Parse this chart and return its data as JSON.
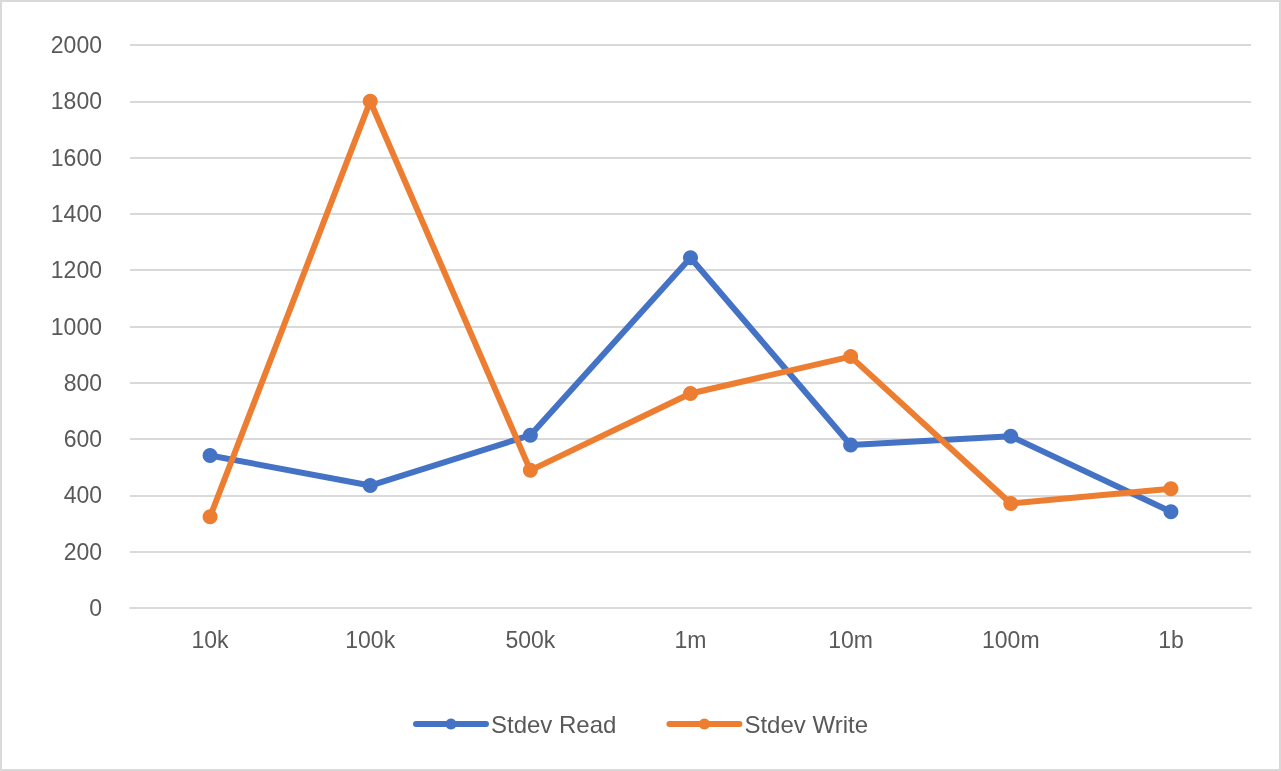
{
  "chart_data": {
    "type": "line",
    "categories": [
      "10k",
      "100k",
      "500k",
      "1m",
      "10m",
      "100m",
      "1b"
    ],
    "series": [
      {
        "name": "Stdev Read",
        "color": "#4472c4",
        "values": [
          542,
          435,
          614,
          1244,
          579,
          610,
          342
        ]
      },
      {
        "name": "Stdev Write",
        "color": "#ed7d31",
        "values": [
          324,
          1800,
          489,
          762,
          893,
          371,
          424
        ]
      }
    ],
    "ylim": [
      0,
      2000
    ],
    "yticks": [
      0,
      200,
      400,
      600,
      800,
      1000,
      1200,
      1400,
      1600,
      1800,
      2000
    ],
    "grid": "y",
    "legend": "bottom",
    "marker": "circle",
    "line_style": "solid"
  }
}
